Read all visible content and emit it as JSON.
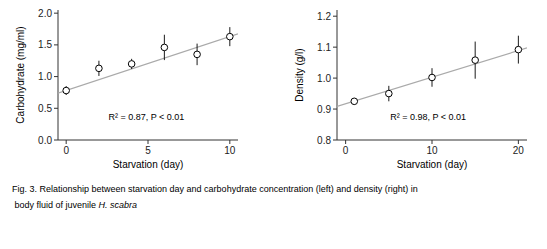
{
  "chart_data": [
    {
      "type": "scatter",
      "xlabel": "Starvation (day)",
      "ylabel": "Carbohydrate (mg/ml)",
      "xlim": [
        -0.5,
        10.5
      ],
      "ylim": [
        0,
        2.05
      ],
      "xticks": [
        0,
        5,
        10
      ],
      "yticks": [
        {
          "value": 0,
          "label": "0.0"
        },
        0.5,
        {
          "value": 1.0,
          "label": "1.0"
        },
        1.5,
        {
          "value": 2.0,
          "label": "2.0"
        }
      ],
      "annotations": [
        {
          "text": "R² = 0.87, P < 0.01"
        }
      ],
      "series": [
        {
          "type": "line",
          "color": "#aaaaaa",
          "x": [
            -0.5,
            10.5
          ],
          "values": [
            0.7375,
            1.6725
          ]
        },
        {
          "type": "scatter",
          "color": "black",
          "marker": "open-circle",
          "x": [
            0,
            2,
            4,
            6,
            8,
            10
          ],
          "values": [
            0.78,
            1.13,
            1.2,
            1.46,
            1.35,
            1.63
          ],
          "errors": [
            0.07,
            0.12,
            0.08,
            0.2,
            0.17,
            0.15
          ]
        }
      ]
    },
    {
      "type": "scatter",
      "xlabel": "Starvation (day)",
      "ylabel": "Density (g/l)",
      "xlim": [
        -1,
        21
      ],
      "ylim": [
        0.8,
        1.22
      ],
      "xticks": [
        0,
        10,
        20
      ],
      "yticks": [
        0.8,
        0.9,
        {
          "value": 1.0,
          "label": "1.0"
        },
        1.1,
        1.2
      ],
      "annotations": [
        {
          "text": "R² = 0.98, P < 0.01"
        }
      ],
      "series": [
        {
          "type": "line",
          "color": "#aaaaaa",
          "x": [
            -1,
            21
          ],
          "values": [
            0.9084,
            1.0976
          ]
        },
        {
          "type": "scatter",
          "color": "black",
          "marker": "open-circle",
          "x": [
            1,
            5,
            10,
            15,
            20
          ],
          "values": [
            0.925,
            0.95,
            1.002,
            1.058,
            1.092
          ],
          "errors": [
            0.01,
            0.025,
            0.03,
            0.06,
            0.045
          ]
        }
      ]
    }
  ],
  "caption": [
    "Fig. 3. Relationship between starvation day and carbohydrate concentration (left) and density (right) in",
    " body fluid of juvenile ",
    "H. scabra"
  ]
}
